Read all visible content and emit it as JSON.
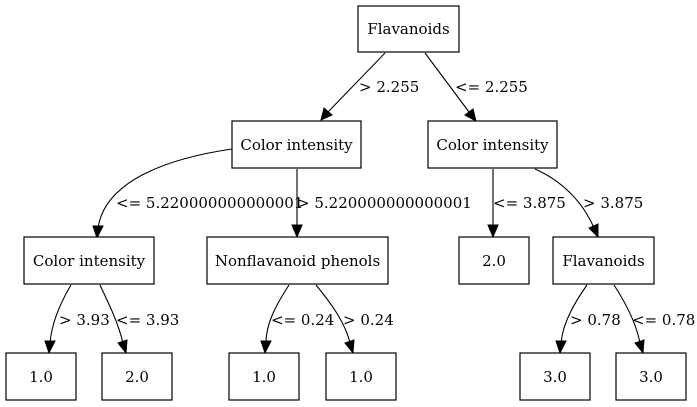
{
  "tree": {
    "nodes": {
      "root": "Flavanoids",
      "n_left": "Color intensity",
      "n_right": "Color intensity",
      "n_ll": "Color intensity",
      "n_lr": "Nonflavanoid phenols",
      "n_rl": "2.0",
      "n_rr": "Flavanoids",
      "leaf_lll": "1.0",
      "leaf_llr": "2.0",
      "leaf_lrl": "1.0",
      "leaf_lrr": "1.0",
      "leaf_rrl": "3.0",
      "leaf_rrr": "3.0"
    },
    "edges": {
      "root_left": "> 2.255",
      "root_right": "<= 2.255",
      "left_ll": "<= 5.220000000000001",
      "left_lr": "> 5.220000000000001",
      "right_rl": "<= 3.875",
      "right_rr": "> 3.875",
      "ll_lll": "> 3.93",
      "ll_llr": "<= 3.93",
      "lr_lrl": "<= 0.24",
      "lr_lrr": "> 0.24",
      "rr_rrl": "> 0.78",
      "rr_rrr": "<= 0.78"
    }
  }
}
